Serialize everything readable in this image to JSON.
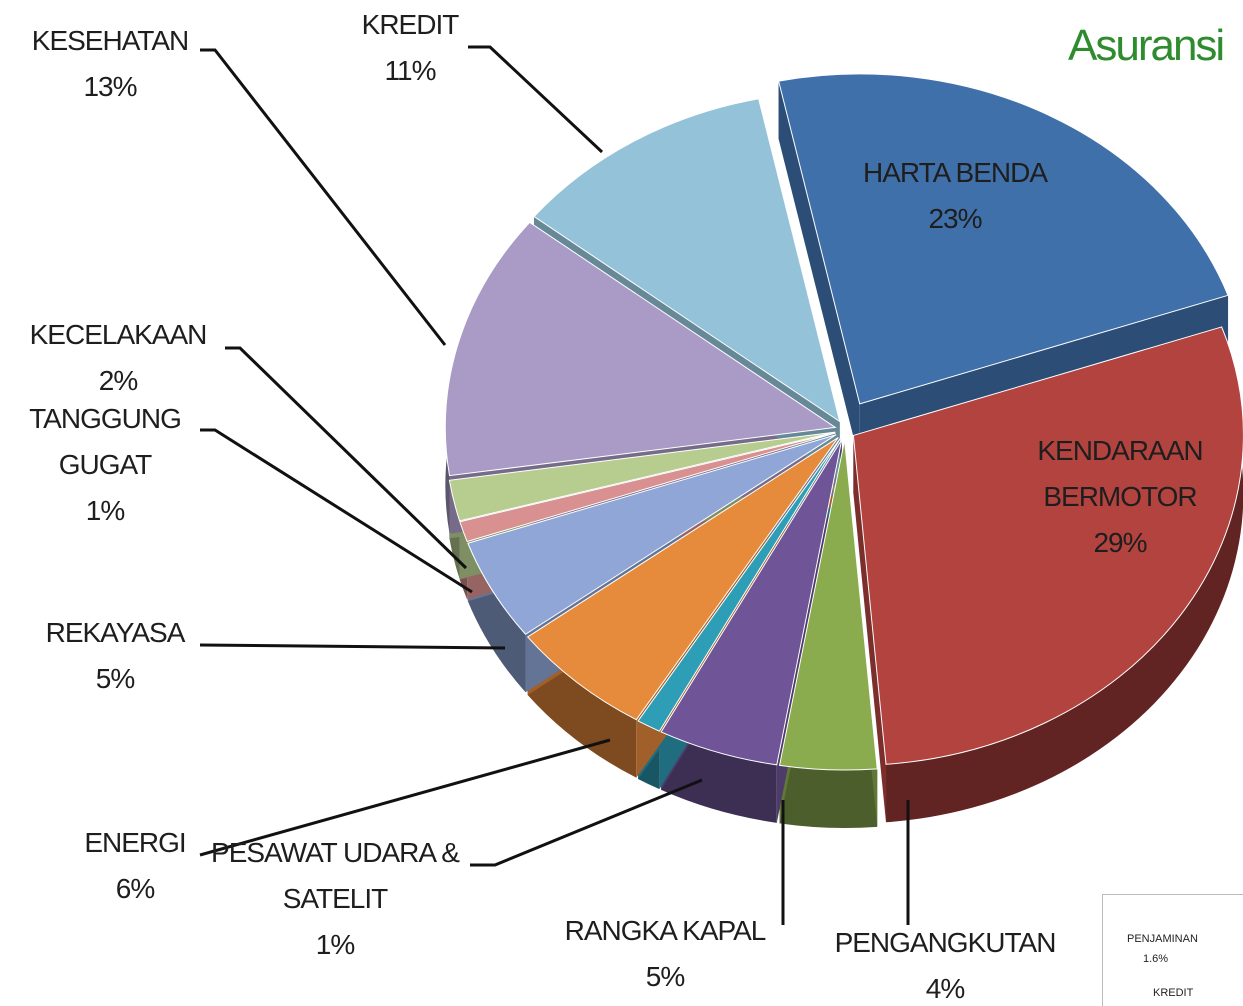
{
  "chart_data": {
    "type": "pie",
    "title": "Asuransi",
    "categories": [
      "HARTA BENDA",
      "KENDARAAN BERMOTOR",
      "PENGANGKUTAN",
      "RANGKA KAPAL",
      "PESAWAT UDARA & SATELIT",
      "ENERGI",
      "REKAYASA",
      "TANGGUNG GUGAT",
      "KECELAKAAN",
      "KESEHATAN",
      "KREDIT"
    ],
    "values": [
      23,
      29,
      4,
      5,
      1,
      6,
      5,
      1,
      2,
      13,
      11
    ],
    "value_labels": [
      "23%",
      "29%",
      "4%",
      "5%",
      "1%",
      "6%",
      "5%",
      "1%",
      "2%",
      "13%",
      "11%"
    ],
    "colors": [
      "#4070aa",
      "#b2433f",
      "#8bab4f",
      "#6f5598",
      "#2e9db6",
      "#e68a3b",
      "#8fa6d7",
      "#d99090",
      "#b6cd8f",
      "#a99bc6",
      "#94c3d9"
    ]
  },
  "inset": {
    "labels": [
      "PENJAMINAN",
      "1.6%",
      "KREDIT"
    ]
  }
}
